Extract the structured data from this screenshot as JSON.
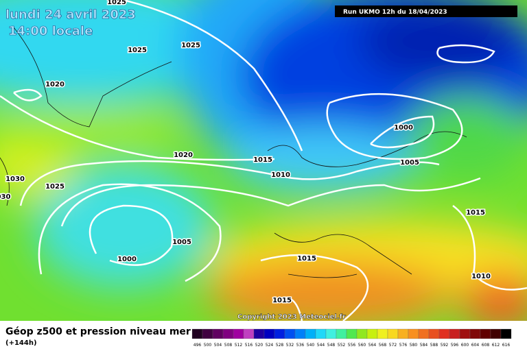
{
  "header": {
    "date": "lundi 24 avril 2023",
    "time": "14:00 locale",
    "run": "Run UKMO 12h du 18/04/2023"
  },
  "isobar_labels": [
    "1025",
    "1025",
    "1025",
    "1020",
    "1020",
    "1015",
    "1010",
    "1030",
    "030",
    "1025",
    "1000",
    "1005",
    "1015",
    "1005",
    "1000",
    "1015",
    "1015",
    "1010"
  ],
  "copyright": "Copyright 2023 Meteociel.fr",
  "footer": {
    "title": "Géop z500 et pression niveau mer",
    "lead": "(+144h)"
  },
  "legend": {
    "labels": [
      "496",
      "500",
      "504",
      "508",
      "512",
      "516",
      "520",
      "524",
      "528",
      "532",
      "536",
      "540",
      "544",
      "548",
      "552",
      "556",
      "560",
      "564",
      "568",
      "572",
      "576",
      "580",
      "584",
      "588",
      "592",
      "596",
      "600",
      "604",
      "608",
      "612",
      "616"
    ]
  }
}
